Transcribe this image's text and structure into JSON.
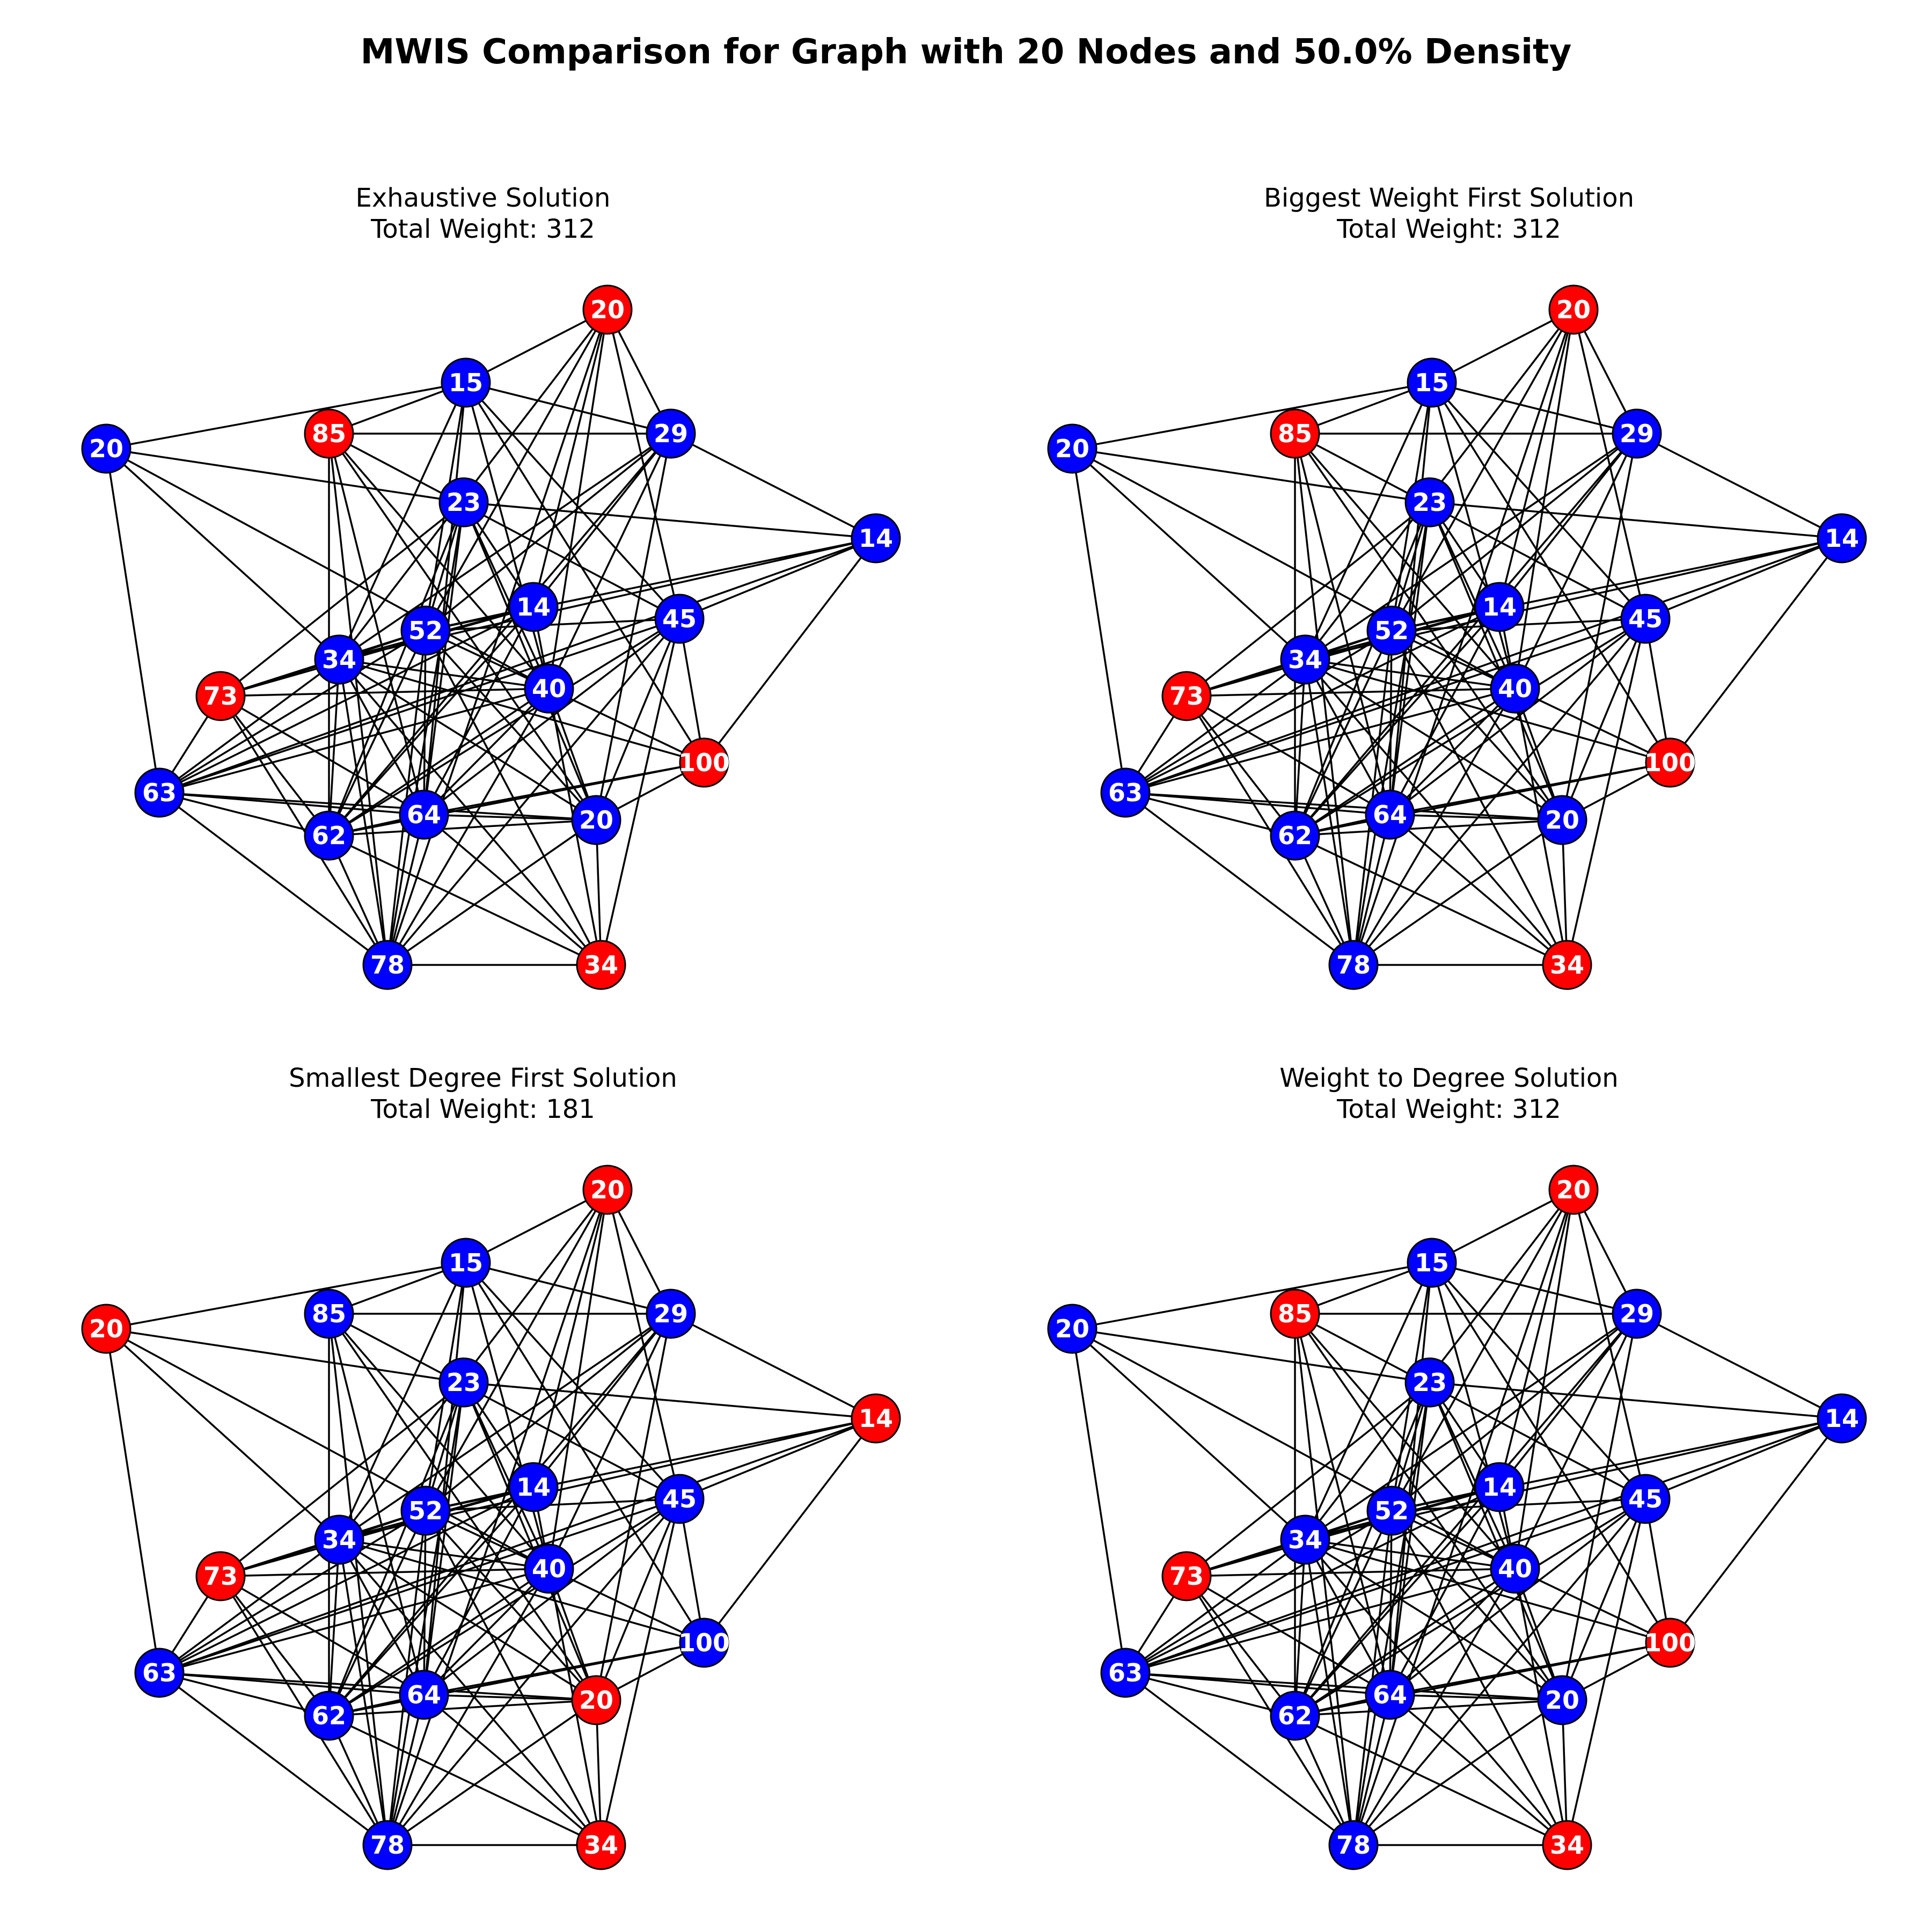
{
  "figure_title": "MWIS Comparison for Graph with 20 Nodes and 50.0% Density",
  "colors": {
    "selected": "#ff0000",
    "unselected": "#0000ff",
    "edge": "#000000",
    "label": "#ffffff"
  },
  "nodes": [
    {
      "id": "n0",
      "weight": "20"
    },
    {
      "id": "n1",
      "weight": "15"
    },
    {
      "id": "n2",
      "weight": "85"
    },
    {
      "id": "n3",
      "weight": "29"
    },
    {
      "id": "n4",
      "weight": "20"
    },
    {
      "id": "n5",
      "weight": "23"
    },
    {
      "id": "n6",
      "weight": "14"
    },
    {
      "id": "n7",
      "weight": "14"
    },
    {
      "id": "n8",
      "weight": "45"
    },
    {
      "id": "n9",
      "weight": "52"
    },
    {
      "id": "n10",
      "weight": "34"
    },
    {
      "id": "n11",
      "weight": "73"
    },
    {
      "id": "n12",
      "weight": "40"
    },
    {
      "id": "n13",
      "weight": "100"
    },
    {
      "id": "n14",
      "weight": "63"
    },
    {
      "id": "n15",
      "weight": "64"
    },
    {
      "id": "n16",
      "weight": "20"
    },
    {
      "id": "n17",
      "weight": "62"
    },
    {
      "id": "n18",
      "weight": "78"
    },
    {
      "id": "n19",
      "weight": "34"
    }
  ],
  "edges": [
    [
      "n0",
      "n1"
    ],
    [
      "n0",
      "n5"
    ],
    [
      "n0",
      "n10"
    ],
    [
      "n0",
      "n12"
    ],
    [
      "n0",
      "n14"
    ],
    [
      "n1",
      "n2"
    ],
    [
      "n1",
      "n3"
    ],
    [
      "n1",
      "n9"
    ],
    [
      "n1",
      "n10"
    ],
    [
      "n1",
      "n12"
    ],
    [
      "n1",
      "n8"
    ],
    [
      "n1",
      "n13"
    ],
    [
      "n1",
      "n15"
    ],
    [
      "n2",
      "n3"
    ],
    [
      "n2",
      "n17"
    ],
    [
      "n2",
      "n12"
    ],
    [
      "n2",
      "n8"
    ],
    [
      "n2",
      "n15"
    ],
    [
      "n2",
      "n18"
    ],
    [
      "n2",
      "n16"
    ],
    [
      "n3",
      "n6"
    ],
    [
      "n3",
      "n7"
    ],
    [
      "n3",
      "n9"
    ],
    [
      "n3",
      "n10"
    ],
    [
      "n3",
      "n12"
    ],
    [
      "n3",
      "n16"
    ],
    [
      "n3",
      "n17"
    ],
    [
      "n4",
      "n1"
    ],
    [
      "n4",
      "n3"
    ],
    [
      "n4",
      "n8"
    ],
    [
      "n4",
      "n10"
    ],
    [
      "n4",
      "n12"
    ],
    [
      "n4",
      "n7"
    ],
    [
      "n4",
      "n9"
    ],
    [
      "n4",
      "n18"
    ],
    [
      "n5",
      "n6"
    ],
    [
      "n5",
      "n11"
    ],
    [
      "n5",
      "n12"
    ],
    [
      "n5",
      "n9"
    ],
    [
      "n5",
      "n7"
    ],
    [
      "n5",
      "n15"
    ],
    [
      "n5",
      "n16"
    ],
    [
      "n5",
      "n18"
    ],
    [
      "n5",
      "n17"
    ],
    [
      "n6",
      "n8"
    ],
    [
      "n6",
      "n9"
    ],
    [
      "n6",
      "n10"
    ],
    [
      "n6",
      "n13"
    ],
    [
      "n6",
      "n14"
    ],
    [
      "n7",
      "n9"
    ],
    [
      "n7",
      "n10"
    ],
    [
      "n7",
      "n11"
    ],
    [
      "n7",
      "n12"
    ],
    [
      "n7",
      "n15"
    ],
    [
      "n7",
      "n17"
    ],
    [
      "n7",
      "n14"
    ],
    [
      "n8",
      "n9"
    ],
    [
      "n8",
      "n13"
    ],
    [
      "n8",
      "n15"
    ],
    [
      "n8",
      "n16"
    ],
    [
      "n8",
      "n17"
    ],
    [
      "n8",
      "n18"
    ],
    [
      "n8",
      "n19"
    ],
    [
      "n8",
      "n14"
    ],
    [
      "n9",
      "n10"
    ],
    [
      "n9",
      "n11"
    ],
    [
      "n9",
      "n12"
    ],
    [
      "n9",
      "n14"
    ],
    [
      "n9",
      "n15"
    ],
    [
      "n9",
      "n16"
    ],
    [
      "n9",
      "n17"
    ],
    [
      "n9",
      "n19"
    ],
    [
      "n9",
      "n18"
    ],
    [
      "n10",
      "n11"
    ],
    [
      "n10",
      "n12"
    ],
    [
      "n10",
      "n14"
    ],
    [
      "n10",
      "n15"
    ],
    [
      "n10",
      "n16"
    ],
    [
      "n10",
      "n17"
    ],
    [
      "n10",
      "n18"
    ],
    [
      "n10",
      "n19"
    ],
    [
      "n10",
      "n13"
    ],
    [
      "n11",
      "n14"
    ],
    [
      "n11",
      "n15"
    ],
    [
      "n11",
      "n17"
    ],
    [
      "n11",
      "n18"
    ],
    [
      "n11",
      "n12"
    ],
    [
      "n12",
      "n13"
    ],
    [
      "n12",
      "n14"
    ],
    [
      "n12",
      "n15"
    ],
    [
      "n12",
      "n16"
    ],
    [
      "n12",
      "n17"
    ],
    [
      "n12",
      "n18"
    ],
    [
      "n12",
      "n19"
    ],
    [
      "n13",
      "n15"
    ],
    [
      "n13",
      "n16"
    ],
    [
      "n13",
      "n17"
    ],
    [
      "n14",
      "n15"
    ],
    [
      "n14",
      "n16"
    ],
    [
      "n14",
      "n17"
    ],
    [
      "n14",
      "n18"
    ],
    [
      "n15",
      "n16"
    ],
    [
      "n15",
      "n17"
    ],
    [
      "n15",
      "n18"
    ],
    [
      "n15",
      "n19"
    ],
    [
      "n16",
      "n17"
    ],
    [
      "n16",
      "n18"
    ],
    [
      "n16",
      "n19"
    ],
    [
      "n17",
      "n18"
    ],
    [
      "n17",
      "n19"
    ],
    [
      "n18",
      "n19"
    ]
  ],
  "panels": [
    {
      "title": "Exhaustive Solution",
      "subtitle": "Total Weight: 312",
      "selected": [
        "n4",
        "n2",
        "n11",
        "n13",
        "n19"
      ]
    },
    {
      "title": "Biggest Weight First Solution",
      "subtitle": "Total Weight: 312",
      "selected": [
        "n4",
        "n2",
        "n11",
        "n13",
        "n19"
      ]
    },
    {
      "title": "Smallest Degree First Solution",
      "subtitle": "Total Weight: 181",
      "selected": [
        "n0",
        "n4",
        "n6",
        "n11",
        "n16",
        "n19"
      ]
    },
    {
      "title": "Weight to Degree Solution",
      "subtitle": "Total Weight: 312",
      "selected": [
        "n4",
        "n2",
        "n11",
        "n13",
        "n19"
      ]
    }
  ]
}
